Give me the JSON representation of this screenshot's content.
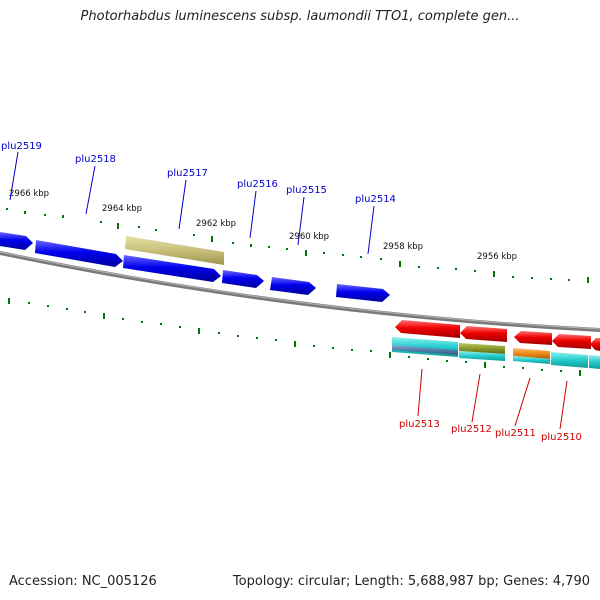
{
  "title": "Photorhabdus luminescens subsp. laumondii TTO1, complete gen...",
  "footer": {
    "accession": "Accession: NC_005126",
    "summary": "Topology: circular; Length: 5,688,987 bp; Genes: 4,790"
  },
  "ticks": [
    "2966 kbp",
    "2964 kbp",
    "2962 kbp",
    "2960 kbp",
    "2958 kbp",
    "2956 kbp"
  ],
  "forward_genes": [
    "plu2519",
    "plu2518",
    "plu2517",
    "plu2516",
    "plu2515",
    "plu2514"
  ],
  "reverse_genes": [
    "plu2513",
    "plu2512",
    "plu2511",
    "plu2510"
  ],
  "colors": {
    "forward": "#0000ee",
    "reverse": "#ee0000",
    "pseudo": "#c8c07a",
    "cyan": "#22cccc",
    "olive": "#8a9a2a",
    "orange": "#ee8a1a",
    "steel": "#5577aa",
    "backbone": "#808080",
    "tick": "#007700"
  }
}
